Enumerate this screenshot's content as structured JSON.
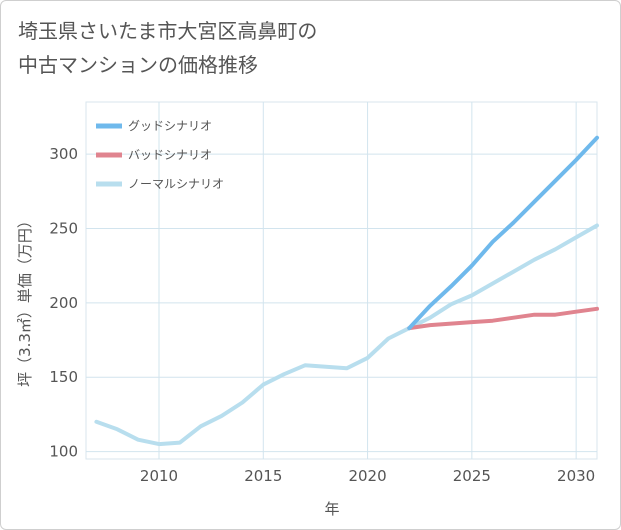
{
  "title_lines": [
    "埼玉県さいたま市大宮区高鼻町の",
    "中古マンションの価格推移"
  ],
  "chart_data": {
    "type": "line",
    "title": "埼玉県さいたま市大宮区高鼻町の中古マンションの価格推移",
    "xlabel": "年",
    "ylabel": "坪（3.3㎡）単価（万円）",
    "xlim": [
      2006.5,
      2031
    ],
    "ylim": [
      95,
      335
    ],
    "xticks": [
      2010,
      2015,
      2020,
      2025,
      2030
    ],
    "yticks": [
      100,
      150,
      200,
      250,
      300
    ],
    "grid": true,
    "legend_position": "top-left",
    "series": [
      {
        "name": "グッドシナリオ",
        "color": "#6fb9ec",
        "x": [
          2022,
          2023,
          2024,
          2025,
          2026,
          2027,
          2028,
          2029,
          2030,
          2031
        ],
        "values": [
          183,
          198,
          211,
          225,
          241,
          254,
          268,
          282,
          296,
          311
        ]
      },
      {
        "name": "バッドシナリオ",
        "color": "#e0848f",
        "x": [
          2022,
          2023,
          2024,
          2025,
          2026,
          2027,
          2028,
          2029,
          2030,
          2031
        ],
        "values": [
          183,
          185,
          186,
          187,
          188,
          190,
          192,
          192,
          194,
          196
        ]
      },
      {
        "name": "ノーマルシナリオ",
        "color": "#b8deee",
        "x": [
          2007,
          2008,
          2009,
          2010,
          2011,
          2012,
          2013,
          2014,
          2015,
          2016,
          2017,
          2018,
          2019,
          2020,
          2021,
          2022,
          2023,
          2024,
          2025,
          2026,
          2027,
          2028,
          2029,
          2030,
          2031
        ],
        "values": [
          120,
          115,
          108,
          105,
          106,
          117,
          124,
          133,
          145,
          152,
          158,
          157,
          156,
          163,
          176,
          183,
          190,
          199,
          205,
          213,
          221,
          229,
          236,
          244,
          252
        ]
      }
    ]
  }
}
